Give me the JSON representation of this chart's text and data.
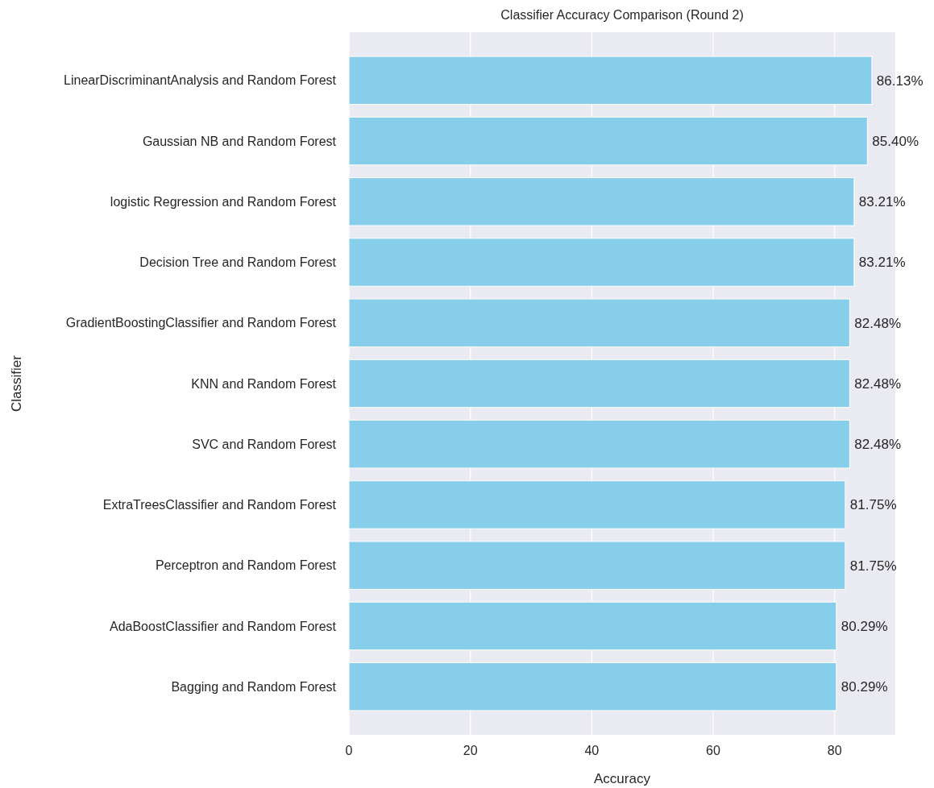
{
  "chart_data": {
    "type": "bar",
    "orientation": "horizontal",
    "title": "Classifier Accuracy Comparison (Round 2)",
    "xlabel": "Accuracy",
    "ylabel": "Classifier",
    "categories": [
      "LinearDiscriminantAnalysis and Random Forest",
      "Gaussian NB and Random Forest",
      "logistic Regression and Random Forest",
      "Decision Tree and Random Forest",
      "GradientBoostingClassifier and Random Forest",
      "KNN and Random Forest",
      "SVC and Random Forest",
      "ExtraTreesClassifier and Random Forest",
      "Perceptron and Random Forest",
      "AdaBoostClassifier and Random Forest",
      "Bagging and Random Forest"
    ],
    "values": [
      86.13,
      85.4,
      83.21,
      83.21,
      82.48,
      82.48,
      82.48,
      81.75,
      81.75,
      80.29,
      80.29
    ],
    "value_labels": [
      "86.13%",
      "85.40%",
      "83.21%",
      "83.21%",
      "82.48%",
      "82.48%",
      "82.48%",
      "81.75%",
      "81.75%",
      "80.29%",
      "80.29%"
    ],
    "color": "#87ceeb",
    "xlim": [
      0,
      90
    ],
    "xticks": [
      0,
      20,
      40,
      60,
      80
    ],
    "grid": "x"
  }
}
